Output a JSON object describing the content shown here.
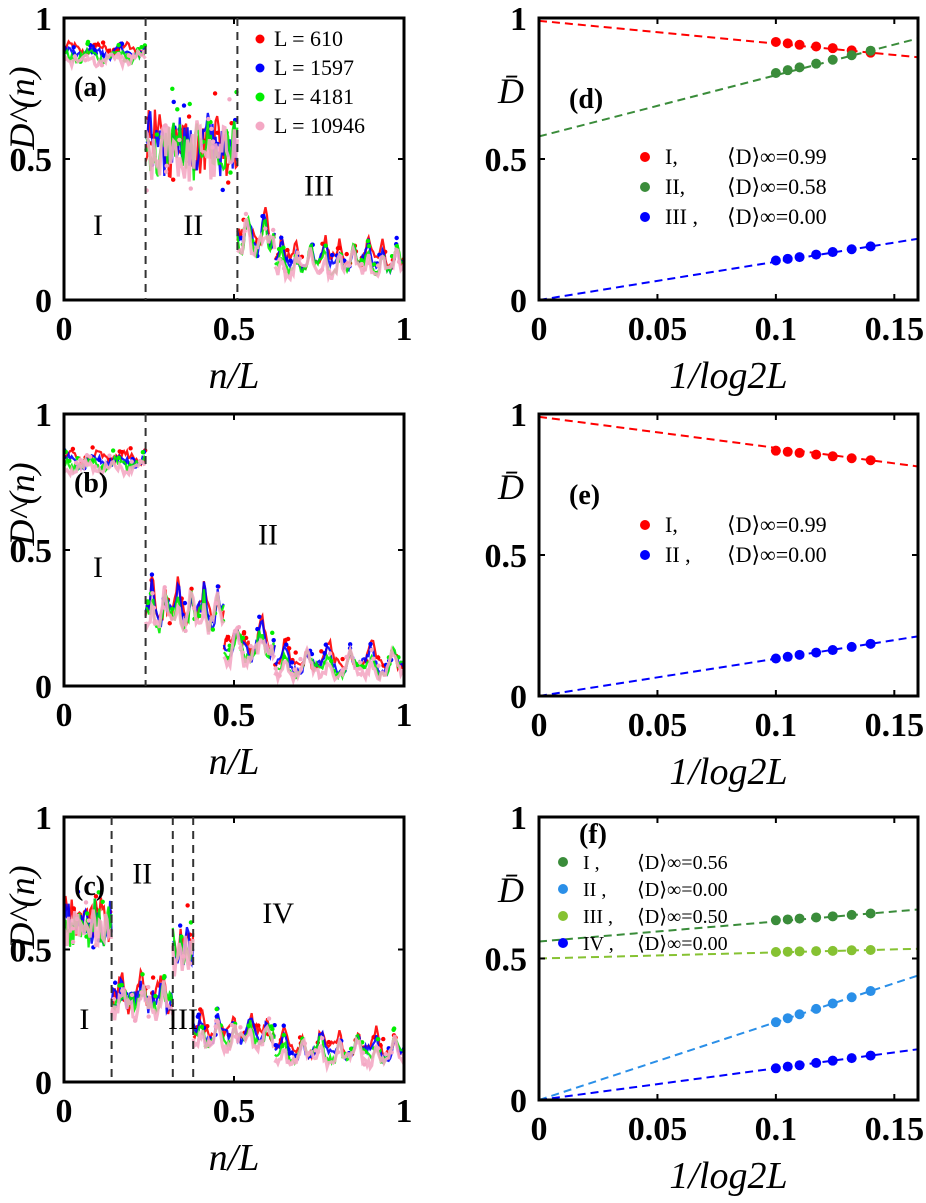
{
  "chart_data": [
    {
      "panel": "(a)",
      "type": "scatter",
      "xlabel": "n/L",
      "ylabel": "D^(n)",
      "xlim": [
        0,
        1
      ],
      "ylim": [
        0,
        1
      ],
      "xticks": [
        "0",
        "0.5",
        "1"
      ],
      "yticks": [
        "0",
        "0.5",
        "1"
      ],
      "boundaries": [
        0.24,
        0.51
      ],
      "regions": [
        {
          "label": "I",
          "x": 0.1,
          "y": 0.23
        },
        {
          "label": "II",
          "x": 0.38,
          "y": 0.23
        },
        {
          "label": "III",
          "x": 0.75,
          "y": 0.37
        }
      ],
      "legend": [
        "L = 610",
        "L = 1597",
        "L = 4181",
        "L = 10946"
      ],
      "segments": [
        {
          "x0": 0,
          "x1": 0.24,
          "center": 0.89,
          "amp": 0.03,
          "noise": 0.02,
          "peaks": 0
        },
        {
          "x0": 0.24,
          "x1": 0.51,
          "center": 0.56,
          "amp": 0.08,
          "noise": 0.13,
          "peaks": 0
        },
        {
          "x0": 0.51,
          "x1": 0.62,
          "center": 0.22,
          "amp": 0.05,
          "noise": 0.03,
          "peaks": 2
        },
        {
          "x0": 0.62,
          "x1": 1.0,
          "center": 0.14,
          "amp": 0.04,
          "noise": 0.02,
          "peaks": 9
        }
      ]
    },
    {
      "panel": "(b)",
      "type": "scatter",
      "xlabel": "n/L",
      "ylabel": "D^(n)",
      "xlim": [
        0,
        1
      ],
      "ylim": [
        0,
        1
      ],
      "xticks": [
        "0",
        "0.5",
        "1"
      ],
      "yticks": [
        "0",
        "0.5",
        "1"
      ],
      "boundaries": [
        0.24
      ],
      "regions": [
        {
          "label": "I",
          "x": 0.1,
          "y": 0.4
        },
        {
          "label": "II",
          "x": 0.6,
          "y": 0.52
        }
      ],
      "segments": [
        {
          "x0": 0,
          "x1": 0.24,
          "center": 0.84,
          "amp": 0.03,
          "noise": 0.02,
          "peaks": 0
        },
        {
          "x0": 0.24,
          "x1": 0.47,
          "center": 0.27,
          "amp": 0.06,
          "noise": 0.04,
          "peaks": 6
        },
        {
          "x0": 0.47,
          "x1": 0.62,
          "center": 0.14,
          "amp": 0.05,
          "noise": 0.03,
          "peaks": 2
        },
        {
          "x0": 0.62,
          "x1": 1.0,
          "center": 0.08,
          "amp": 0.04,
          "noise": 0.02,
          "peaks": 6
        }
      ]
    },
    {
      "panel": "(c)",
      "type": "scatter",
      "xlabel": "n/L",
      "ylabel": "D^(n)",
      "xlim": [
        0,
        1
      ],
      "ylim": [
        0,
        1
      ],
      "xticks": [
        "0",
        "0.5",
        "1"
      ],
      "yticks": [
        "0",
        "0.5",
        "1"
      ],
      "boundaries": [
        0.14,
        0.32,
        0.38
      ],
      "regions": [
        {
          "label": "I",
          "x": 0.06,
          "y": 0.2
        },
        {
          "label": "II",
          "x": 0.23,
          "y": 0.75
        },
        {
          "label": "III",
          "x": 0.35,
          "y": 0.2
        },
        {
          "label": "IV",
          "x": 0.63,
          "y": 0.6
        }
      ],
      "segments": [
        {
          "x0": 0,
          "x1": 0.14,
          "center": 0.62,
          "amp": 0.06,
          "noise": 0.1,
          "peaks": 0
        },
        {
          "x0": 0.14,
          "x1": 0.32,
          "center": 0.31,
          "amp": 0.05,
          "noise": 0.05,
          "peaks": 3
        },
        {
          "x0": 0.32,
          "x1": 0.38,
          "center": 0.52,
          "amp": 0.08,
          "noise": 0.08,
          "peaks": 0
        },
        {
          "x0": 0.38,
          "x1": 0.62,
          "center": 0.18,
          "amp": 0.04,
          "noise": 0.03,
          "peaks": 5
        },
        {
          "x0": 0.62,
          "x1": 1.0,
          "center": 0.12,
          "amp": 0.04,
          "noise": 0.02,
          "peaks": 7
        }
      ]
    },
    {
      "panel": "(d)",
      "type": "scatter",
      "xlabel": "1/log2L",
      "ylabel": "D̄",
      "xlim": [
        0,
        0.16
      ],
      "ylim": [
        0,
        1
      ],
      "xticks": [
        "0",
        "0.05",
        "0.1",
        "0.15"
      ],
      "yticks": [
        "0",
        "0.5",
        "1"
      ],
      "x": [
        0.1,
        0.105,
        0.11,
        0.117,
        0.124,
        0.132,
        0.14
      ],
      "series": [
        {
          "name": "I,",
          "value_label": "⟨D⟩∞=0.99",
          "color": "#ff0000",
          "intercept": 0.99,
          "values": [
            0.915,
            0.91,
            0.905,
            0.899,
            0.893,
            0.885,
            0.877
          ]
        },
        {
          "name": "II,",
          "value_label": "⟨D⟩∞=0.58",
          "color": "#3a8c3a",
          "intercept": 0.58,
          "values": [
            0.805,
            0.815,
            0.825,
            0.838,
            0.852,
            0.868,
            0.884
          ]
        },
        {
          "name": "III ,",
          "value_label": "⟨D⟩∞=0.00",
          "color": "#0000ff",
          "intercept": 0.0,
          "values": [
            0.14,
            0.146,
            0.152,
            0.161,
            0.17,
            0.18,
            0.19
          ]
        }
      ]
    },
    {
      "panel": "(e)",
      "type": "scatter",
      "xlabel": "1/log2L",
      "ylabel": "D̄",
      "xlim": [
        0,
        0.16
      ],
      "ylim": [
        0,
        1
      ],
      "xticks": [
        "0",
        "0.05",
        "0.1",
        "0.15"
      ],
      "yticks": [
        "0",
        "0.5",
        "1"
      ],
      "x": [
        0.1,
        0.105,
        0.11,
        0.117,
        0.124,
        0.132,
        0.14
      ],
      "series": [
        {
          "name": "I,",
          "value_label": "⟨D⟩∞=0.99",
          "color": "#ff0000",
          "intercept": 0.99,
          "values": [
            0.87,
            0.866,
            0.862,
            0.856,
            0.85,
            0.843,
            0.836
          ]
        },
        {
          "name": "II ,",
          "value_label": "⟨D⟩∞=0.00",
          "color": "#0000ff",
          "intercept": 0.0,
          "values": [
            0.133,
            0.139,
            0.146,
            0.154,
            0.163,
            0.174,
            0.185
          ]
        }
      ]
    },
    {
      "panel": "(f)",
      "type": "scatter",
      "xlabel": "1/log2L",
      "ylabel": "D̄",
      "xlim": [
        0,
        0.16
      ],
      "ylim": [
        0,
        1
      ],
      "xticks": [
        "0",
        "0.05",
        "0.1",
        "0.15"
      ],
      "yticks": [
        "0",
        "0.5",
        "1"
      ],
      "x": [
        0.1,
        0.105,
        0.11,
        0.117,
        0.124,
        0.132,
        0.14
      ],
      "series": [
        {
          "name": "I ,",
          "value_label": "⟨D⟩∞=0.56",
          "color": "#3a8c3a",
          "intercept": 0.56,
          "values": [
            0.635,
            0.638,
            0.641,
            0.645,
            0.649,
            0.654,
            0.659
          ]
        },
        {
          "name": "II ,",
          "value_label": "⟨D⟩∞=0.00",
          "color": "#2a8fe8",
          "intercept": 0.0,
          "values": [
            0.275,
            0.289,
            0.303,
            0.322,
            0.341,
            0.363,
            0.385
          ]
        },
        {
          "name": "III ,",
          "value_label": "⟨D⟩∞=0.50",
          "color": "#86c232",
          "intercept": 0.5,
          "values": [
            0.523,
            0.524,
            0.525,
            0.526,
            0.527,
            0.529,
            0.53
          ]
        },
        {
          "name": "IV ,",
          "value_label": "⟨D⟩∞=0.00",
          "color": "#0000ff",
          "intercept": 0.0,
          "values": [
            0.112,
            0.118,
            0.123,
            0.131,
            0.139,
            0.148,
            0.157
          ]
        }
      ]
    }
  ],
  "size_colors": [
    "#ff0000",
    "#0000ff",
    "#00ee00",
    "#f4a8c4"
  ]
}
